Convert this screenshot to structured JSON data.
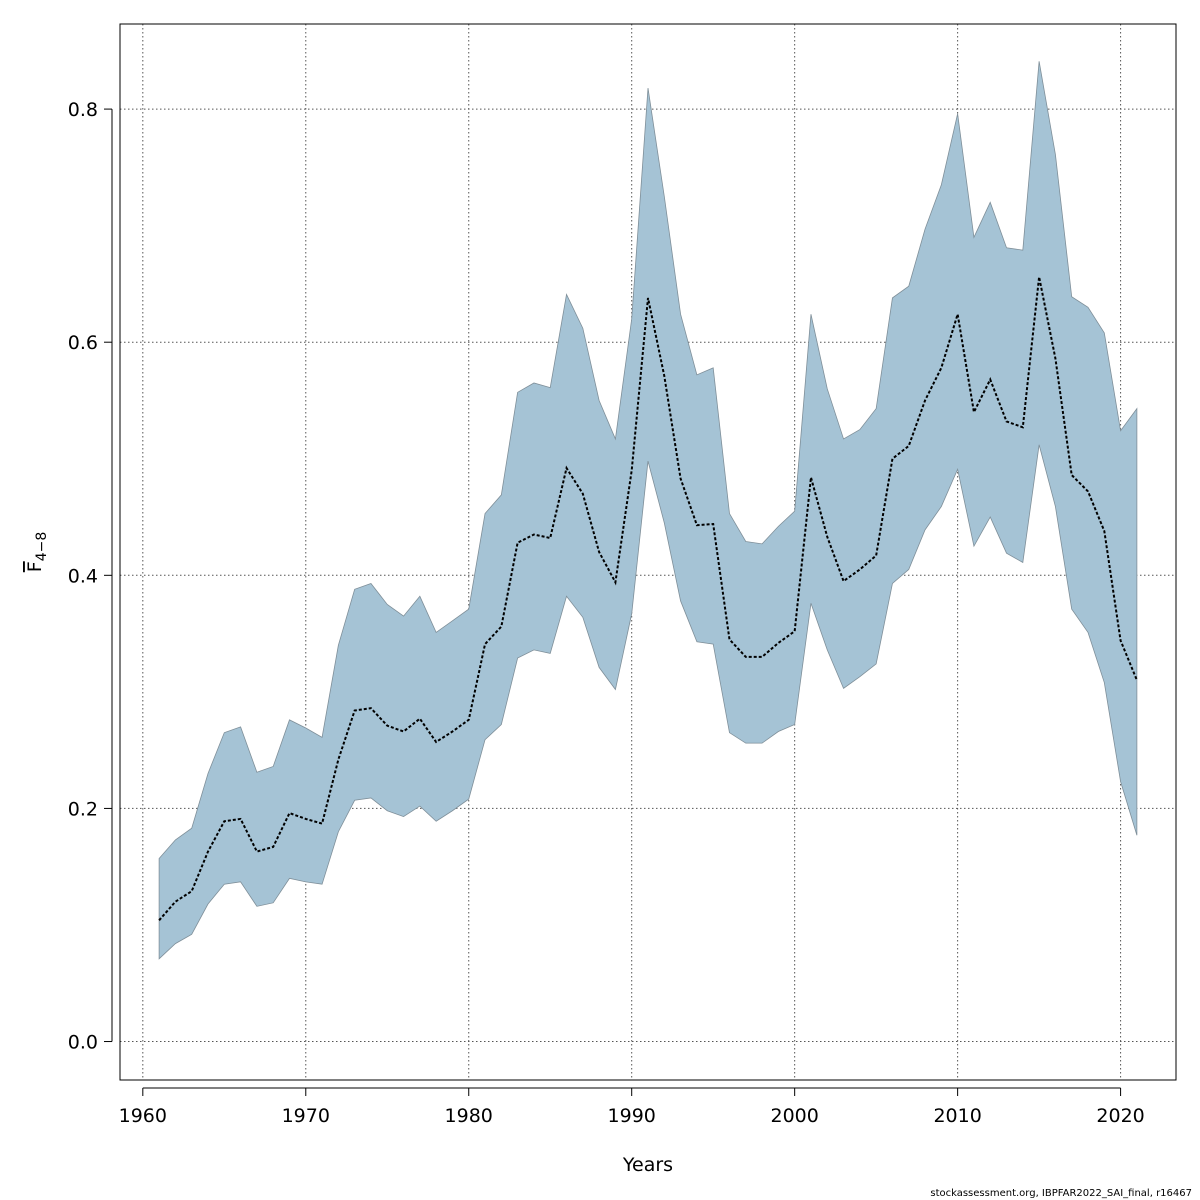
{
  "chart_data": {
    "type": "area",
    "xlabel": "Years",
    "ylabel_main": "F",
    "ylabel_sub": "4−8",
    "xlim": [
      1958.6,
      2023.4
    ],
    "ylim": [
      -0.033,
      0.873
    ],
    "x_ticks": [
      1960,
      1970,
      1980,
      1990,
      2000,
      2010,
      2020
    ],
    "y_ticks": [
      0.0,
      0.2,
      0.4,
      0.6,
      0.8
    ],
    "y_tick_labels": [
      "0.0",
      "0.2",
      "0.4",
      "0.6",
      "0.8"
    ],
    "grid": true,
    "colors": {
      "band": "#a5c3d5",
      "band_edge": "#7f8f99",
      "line": "#000000",
      "grid": "#555555"
    },
    "x": [
      1961,
      1962,
      1963,
      1964,
      1965,
      1966,
      1967,
      1968,
      1969,
      1970,
      1971,
      1972,
      1973,
      1974,
      1975,
      1976,
      1977,
      1978,
      1979,
      1980,
      1981,
      1982,
      1983,
      1984,
      1985,
      1986,
      1987,
      1988,
      1989,
      1990,
      1991,
      1992,
      1993,
      1994,
      1995,
      1996,
      1997,
      1998,
      1999,
      2000,
      2001,
      2002,
      2003,
      2004,
      2005,
      2006,
      2007,
      2008,
      2009,
      2010,
      2011,
      2012,
      2013,
      2014,
      2015,
      2016,
      2017,
      2018,
      2019,
      2020,
      2021
    ],
    "series": [
      {
        "role": "estimate",
        "values": [
          0.104,
          0.12,
          0.129,
          0.163,
          0.189,
          0.191,
          0.163,
          0.167,
          0.196,
          0.191,
          0.187,
          0.242,
          0.284,
          0.286,
          0.271,
          0.266,
          0.277,
          0.257,
          0.266,
          0.276,
          0.341,
          0.356,
          0.428,
          0.435,
          0.432,
          0.492,
          0.47,
          0.42,
          0.394,
          0.49,
          0.638,
          0.571,
          0.483,
          0.443,
          0.444,
          0.345,
          0.33,
          0.33,
          0.342,
          0.352,
          0.484,
          0.433,
          0.395,
          0.405,
          0.417,
          0.5,
          0.511,
          0.55,
          0.578,
          0.624,
          0.54,
          0.568,
          0.532,
          0.527,
          0.656,
          0.586,
          0.486,
          0.472,
          0.438,
          0.344,
          0.31
        ]
      },
      {
        "role": "upper",
        "values": [
          0.157,
          0.173,
          0.183,
          0.23,
          0.265,
          0.27,
          0.231,
          0.236,
          0.276,
          0.269,
          0.261,
          0.34,
          0.388,
          0.393,
          0.375,
          0.365,
          0.382,
          0.351,
          0.361,
          0.371,
          0.453,
          0.469,
          0.557,
          0.565,
          0.561,
          0.641,
          0.612,
          0.55,
          0.517,
          0.62,
          0.818,
          0.725,
          0.624,
          0.572,
          0.578,
          0.453,
          0.429,
          0.427,
          0.442,
          0.455,
          0.624,
          0.56,
          0.517,
          0.525,
          0.543,
          0.638,
          0.648,
          0.697,
          0.735,
          0.796,
          0.69,
          0.72,
          0.681,
          0.679,
          0.841,
          0.761,
          0.639,
          0.63,
          0.608,
          0.524,
          0.543
        ]
      },
      {
        "role": "lower",
        "values": [
          0.071,
          0.084,
          0.092,
          0.118,
          0.135,
          0.137,
          0.116,
          0.119,
          0.14,
          0.137,
          0.135,
          0.18,
          0.207,
          0.209,
          0.198,
          0.193,
          0.202,
          0.189,
          0.198,
          0.208,
          0.259,
          0.272,
          0.329,
          0.336,
          0.333,
          0.382,
          0.364,
          0.321,
          0.302,
          0.367,
          0.498,
          0.445,
          0.378,
          0.343,
          0.341,
          0.265,
          0.256,
          0.256,
          0.266,
          0.272,
          0.376,
          0.336,
          0.303,
          0.313,
          0.324,
          0.393,
          0.405,
          0.439,
          0.459,
          0.491,
          0.425,
          0.45,
          0.419,
          0.411,
          0.512,
          0.459,
          0.371,
          0.351,
          0.308,
          0.223,
          0.177
        ]
      }
    ]
  },
  "footer": "stockassessment.org, IBPFAR2022_SAI_final, r16467"
}
